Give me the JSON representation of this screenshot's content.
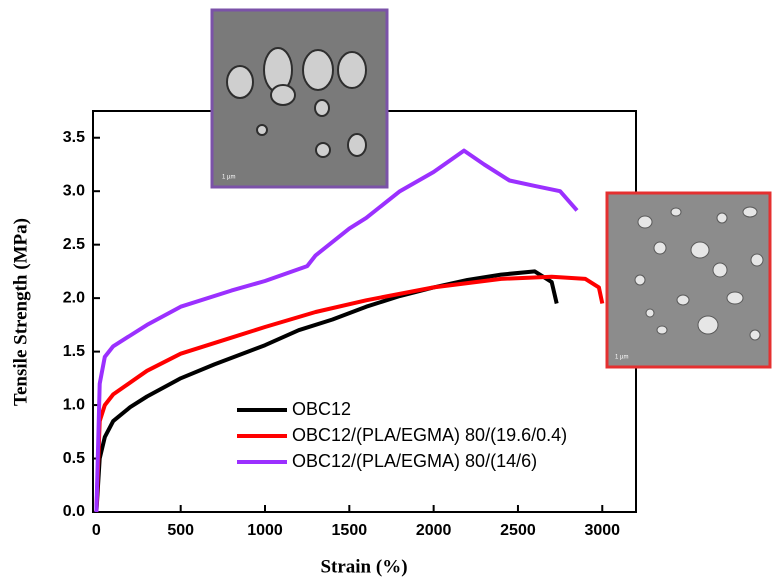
{
  "chart_data": {
    "type": "line",
    "x_label": "Strain (%)",
    "y_label": "Tensile Strength (MPa)",
    "xlim": [
      -20,
      3200
    ],
    "ylim": [
      0,
      3.75
    ],
    "xticks": [
      0,
      500,
      1000,
      1500,
      2000,
      2500,
      3000
    ],
    "yticks": [
      {
        "value": 0,
        "label": "0.0"
      },
      0.5,
      {
        "value": 1,
        "label": "1.0"
      },
      1.5,
      {
        "value": 2,
        "label": "2.0"
      },
      2.5,
      {
        "value": 3,
        "label": "3.0"
      },
      3.5
    ],
    "legend": "lower center",
    "series": [
      {
        "name": "OBC12",
        "color": "#000000",
        "x": [
          0,
          20,
          50,
          100,
          200,
          300,
          500,
          700,
          900,
          1000,
          1200,
          1400,
          1600,
          1800,
          2000,
          2200,
          2400,
          2600,
          2700,
          2730
        ],
        "values": [
          0,
          0.5,
          0.7,
          0.85,
          0.98,
          1.08,
          1.25,
          1.38,
          1.5,
          1.56,
          1.7,
          1.8,
          1.92,
          2.02,
          2.1,
          2.17,
          2.22,
          2.25,
          2.15,
          1.95
        ]
      },
      {
        "name": "OBC12/(PLA/EGMA) 80/(19.6/0.4)",
        "color": "#ff0000",
        "x": [
          0,
          20,
          50,
          100,
          300,
          500,
          800,
          1000,
          1300,
          1600,
          2000,
          2400,
          2700,
          2900,
          2980,
          3000
        ],
        "values": [
          0,
          0.85,
          1.0,
          1.1,
          1.32,
          1.48,
          1.63,
          1.73,
          1.87,
          1.98,
          2.1,
          2.18,
          2.2,
          2.18,
          2.1,
          1.95
        ]
      },
      {
        "name": "OBC12/(PLA/EGMA) 80/(14/6)",
        "color": "#9b30ff",
        "x": [
          0,
          20,
          50,
          100,
          300,
          500,
          800,
          1000,
          1250,
          1300,
          1500,
          1600,
          1800,
          2000,
          2180,
          2300,
          2450,
          2600,
          2750,
          2850
        ],
        "values": [
          0,
          1.2,
          1.45,
          1.55,
          1.75,
          1.92,
          2.07,
          2.16,
          2.3,
          2.4,
          2.65,
          2.75,
          3.0,
          3.18,
          3.38,
          3.25,
          3.1,
          3.05,
          3.0,
          2.82
        ]
      }
    ]
  },
  "insets": [
    {
      "scale": "1 µm"
    },
    {
      "scale": "1 µm"
    }
  ]
}
